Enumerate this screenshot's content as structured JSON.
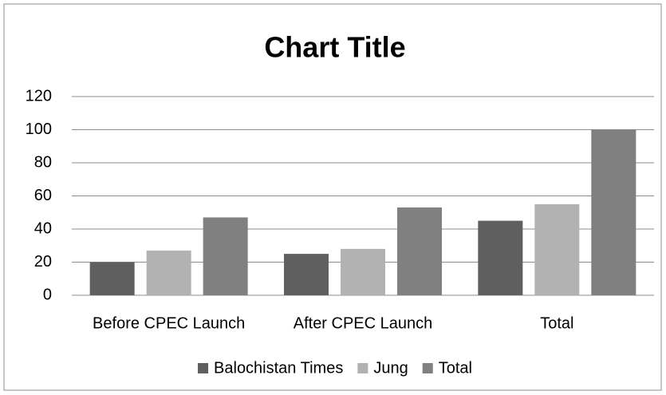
{
  "chart_data": {
    "type": "bar",
    "title": "Chart Title",
    "categories": [
      "Before CPEC Launch",
      "After CPEC Launch",
      "Total"
    ],
    "series": [
      {
        "name": "Balochistan Times",
        "color": "#5f5f5f",
        "values": [
          20,
          25,
          45
        ]
      },
      {
        "name": "Jung",
        "color": "#b2b2b2",
        "values": [
          27,
          28,
          55
        ]
      },
      {
        "name": "Total",
        "color": "#808080",
        "values": [
          47,
          53,
          100
        ]
      }
    ],
    "ylim": [
      0,
      120
    ],
    "yticks": [
      0,
      20,
      40,
      60,
      80,
      100,
      120
    ],
    "grid": true,
    "legend": "bottom"
  }
}
